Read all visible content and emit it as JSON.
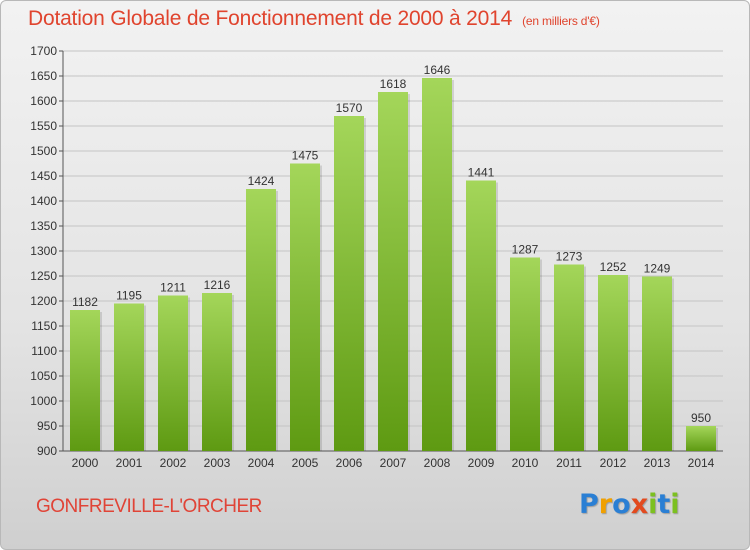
{
  "title": "Dotation Globale de Fonctionnement de 2000 à 2014",
  "unit_label": "(en milliers d'€)",
  "location": "GONFREVILLE-L'ORCHER",
  "logo": {
    "letters": [
      "P",
      "r",
      "o",
      "x",
      "i",
      "t",
      "i"
    ],
    "colors": [
      "#2a7fd4",
      "#f0a000",
      "#2a7fd4",
      "#e24a1e",
      "#7cc020",
      "#2a7fd4",
      "#7cc020"
    ]
  },
  "colors": {
    "bar_top": "#a4d65a",
    "bar_bottom": "#5e9a12",
    "title": "#e0442e"
  },
  "chart_data": {
    "type": "bar",
    "categories": [
      "2000",
      "2001",
      "2002",
      "2003",
      "2004",
      "2005",
      "2006",
      "2007",
      "2008",
      "2009",
      "2010",
      "2011",
      "2012",
      "2013",
      "2014"
    ],
    "values": [
      1182,
      1195,
      1211,
      1216,
      1424,
      1475,
      1570,
      1618,
      1646,
      1441,
      1287,
      1273,
      1252,
      1249,
      950
    ],
    "title": "Dotation Globale de Fonctionnement de 2000 à 2014",
    "ylabel": "(en milliers d'€)",
    "ylim": [
      900,
      1700
    ],
    "yticks": [
      900,
      950,
      1000,
      1050,
      1100,
      1150,
      1200,
      1250,
      1300,
      1350,
      1400,
      1450,
      1500,
      1550,
      1600,
      1650,
      1700
    ],
    "grid": true
  }
}
